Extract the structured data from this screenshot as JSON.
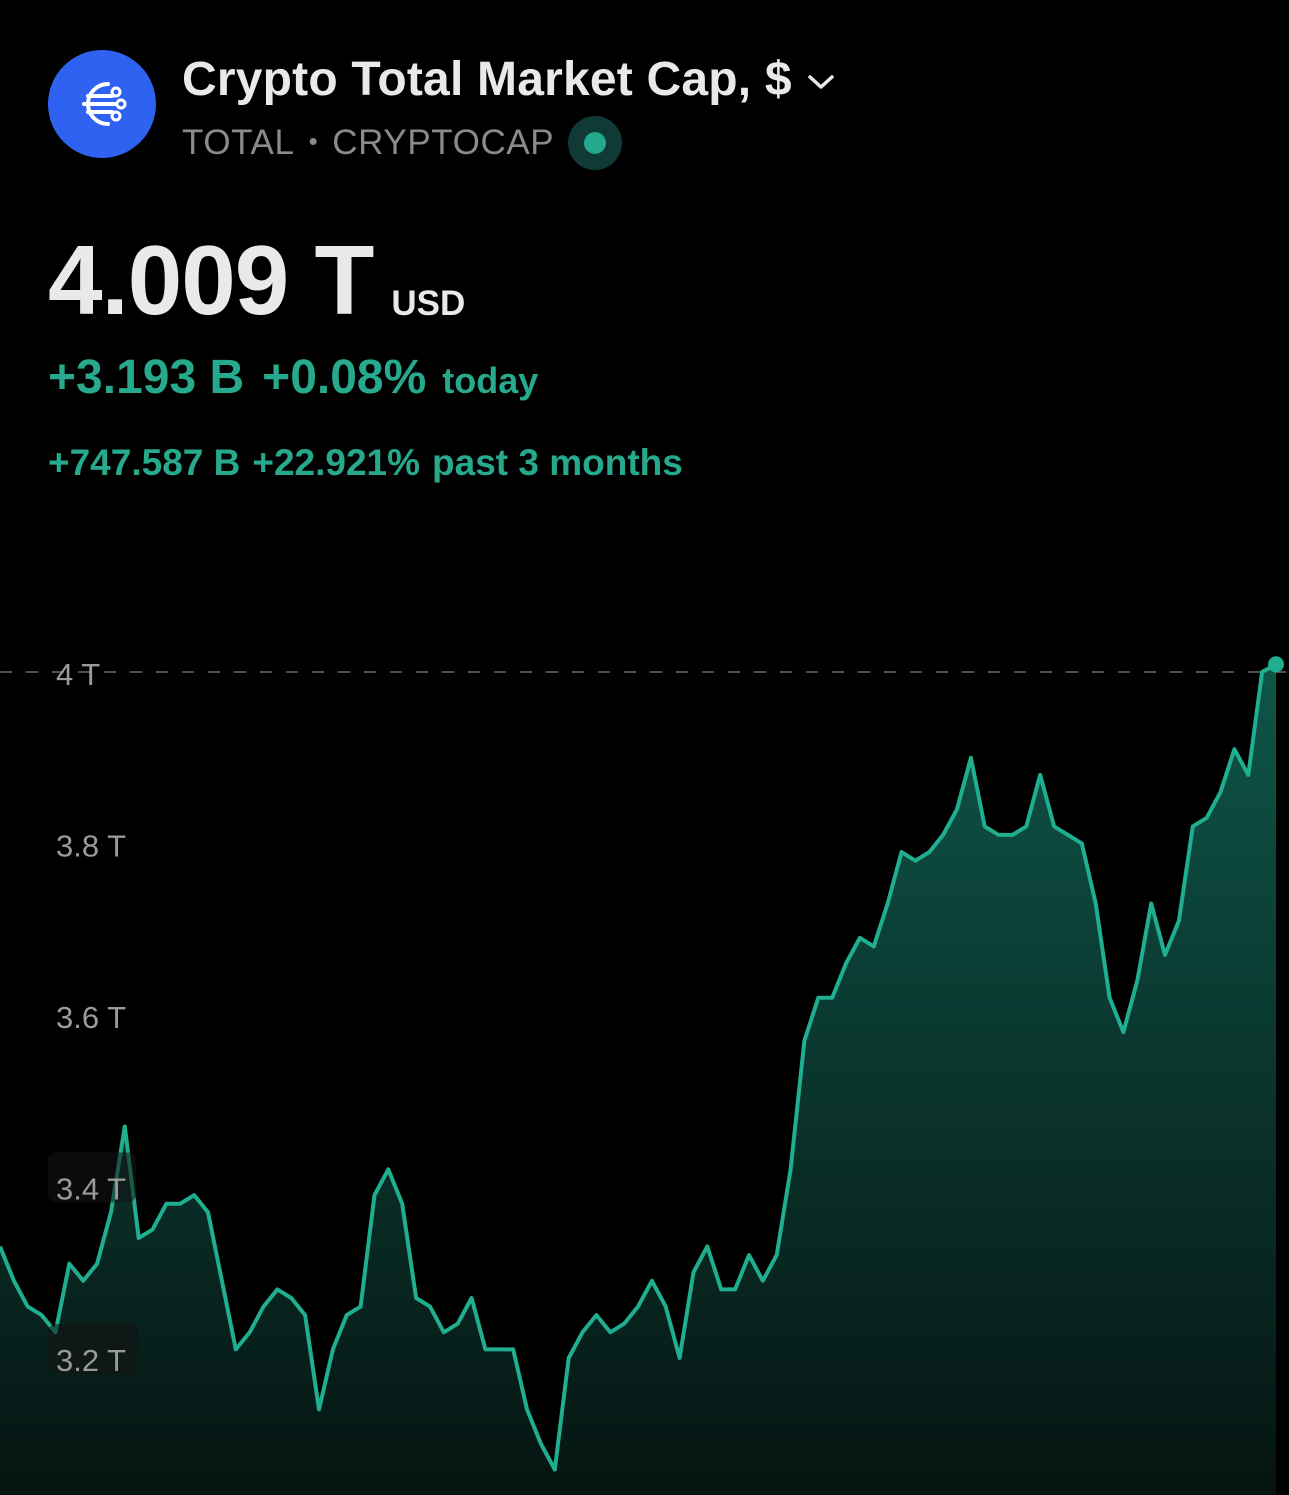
{
  "header": {
    "title": "Crypto Total Market Cap, $",
    "symbol": "TOTAL",
    "separator": "•",
    "exchange": "CRYPTOCAP",
    "logo_icon": "network-lines-icon",
    "status_icon": "market-status-dot-icon"
  },
  "quote": {
    "price": "4.009 T",
    "currency": "USD",
    "change_today_abs": "+3.193 B",
    "change_today_pct": "+0.08%",
    "change_today_label": "today",
    "change_period_abs": "+747.587 B",
    "change_period_pct": "+22.921%",
    "change_period_label": "past 3 months"
  },
  "colors": {
    "background": "#000000",
    "logo_bg": "#2f62f0",
    "accent_green": "#27a98e",
    "line_green": "#1fae8f",
    "axis_text": "#9a9a9a"
  },
  "chart_data": {
    "type": "area",
    "y_ticks": [
      "4 T",
      "3.8 T",
      "3.6 T",
      "3.4 T",
      "3.2 T"
    ],
    "y_tick_values": [
      4.0,
      3.8,
      3.6,
      3.4,
      3.2
    ],
    "ylim": [
      3.06,
      4.1
    ],
    "y_unit": "T",
    "reference_line": 4.0,
    "grid": false,
    "legend": "none",
    "series": [
      {
        "values": [
          3.33,
          3.29,
          3.26,
          3.25,
          3.23,
          3.31,
          3.29,
          3.31,
          3.37,
          3.47,
          3.34,
          3.35,
          3.38,
          3.38,
          3.39,
          3.37,
          3.29,
          3.21,
          3.23,
          3.26,
          3.28,
          3.27,
          3.25,
          3.14,
          3.21,
          3.25,
          3.26,
          3.39,
          3.42,
          3.38,
          3.27,
          3.26,
          3.23,
          3.24,
          3.27,
          3.21,
          3.21,
          3.21,
          3.14,
          3.1,
          3.07,
          3.2,
          3.23,
          3.25,
          3.23,
          3.24,
          3.26,
          3.29,
          3.26,
          3.2,
          3.3,
          3.33,
          3.28,
          3.28,
          3.32,
          3.29,
          3.32,
          3.42,
          3.57,
          3.62,
          3.62,
          3.66,
          3.69,
          3.68,
          3.73,
          3.79,
          3.78,
          3.79,
          3.81,
          3.84,
          3.9,
          3.82,
          3.81,
          3.81,
          3.82,
          3.88,
          3.82,
          3.81,
          3.8,
          3.73,
          3.62,
          3.58,
          3.64,
          3.73,
          3.67,
          3.71,
          3.82,
          3.83,
          3.86,
          3.91,
          3.88,
          4.0,
          4.009
        ]
      }
    ]
  }
}
